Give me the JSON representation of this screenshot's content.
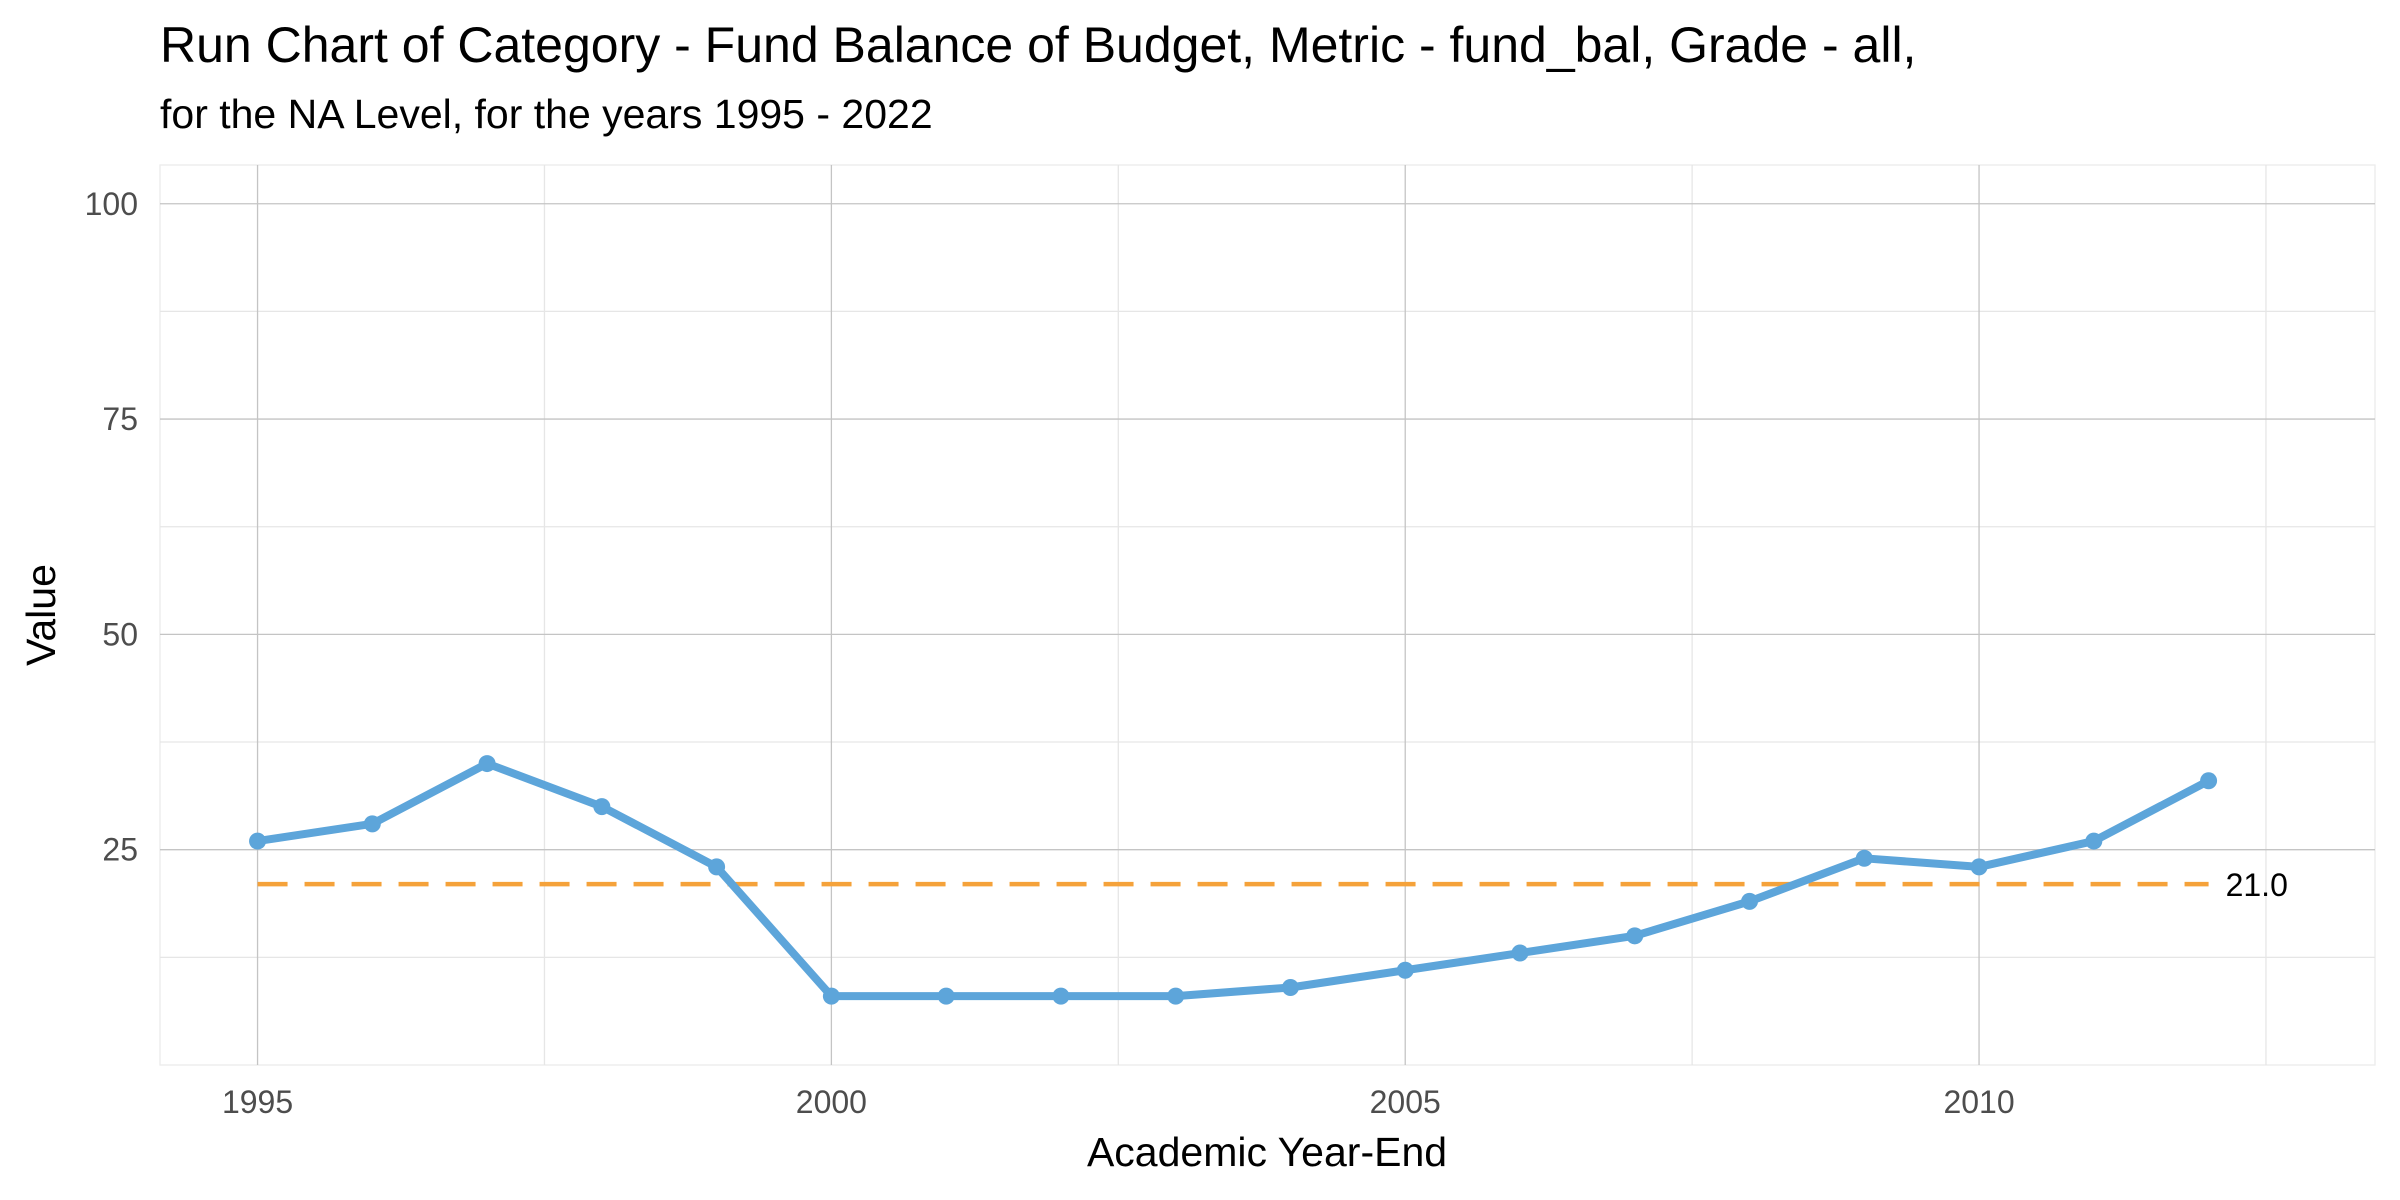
{
  "chart_data": {
    "type": "line",
    "title": "Run Chart of Category -  Fund Balance of Budget, Metric - fund_bal, Grade - all,",
    "subtitle": "for the NA Level, for the years 1995 - 2022",
    "xlabel": "Academic Year-End",
    "ylabel": "Value",
    "xlim": [
      1994.15,
      2013.45
    ],
    "ylim": [
      0,
      104.5
    ],
    "x_ticks": [
      1995,
      2000,
      2005,
      2010
    ],
    "x_tick_labels": [
      "1995",
      "2000",
      "2005",
      "2010"
    ],
    "y_ticks": [
      25,
      50,
      75,
      100
    ],
    "y_tick_labels": [
      "25",
      "50",
      "75",
      "100"
    ],
    "grid": true,
    "series": [
      {
        "x": [
          1995,
          1996,
          1997,
          1998,
          1999,
          2000,
          2001,
          2002,
          2003,
          2004,
          2005,
          2006,
          2007,
          2008,
          2009,
          2010,
          2011,
          2012
        ],
        "values": [
          26,
          28,
          35,
          30,
          23,
          8,
          8,
          8,
          8,
          9,
          11,
          13,
          15,
          19,
          24,
          23,
          26,
          33
        ],
        "color": "#5DA5DA"
      }
    ],
    "reference_line": {
      "value": 21,
      "label": "21.0",
      "x_range": [
        1995,
        2012
      ],
      "color": "#F5A23A",
      "style": "dashed"
    }
  }
}
